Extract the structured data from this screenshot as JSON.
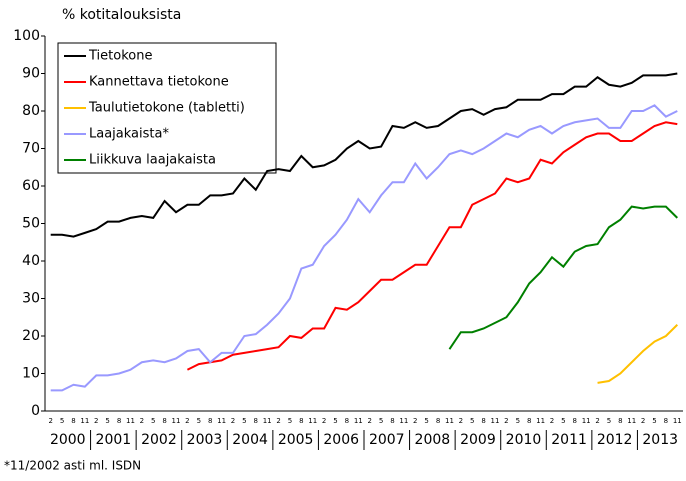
{
  "chart_data": {
    "type": "line",
    "y_label": "% kotitalouksista",
    "footnote": "*11/2002 asti ml. ISDN",
    "categories": [
      "2",
      "5",
      "8",
      "11",
      "2",
      "5",
      "8",
      "11",
      "2",
      "5",
      "8",
      "11",
      "2",
      "5",
      "8",
      "11",
      "2",
      "5",
      "8",
      "11",
      "2",
      "5",
      "8",
      "11",
      "2",
      "5",
      "8",
      "11",
      "2",
      "5",
      "8",
      "11",
      "2",
      "5",
      "8",
      "11",
      "2",
      "5",
      "8",
      "11",
      "2",
      "5",
      "8",
      "11",
      "2",
      "5",
      "8",
      "11",
      "2",
      "5",
      "8",
      "11",
      "2",
      "5",
      "8",
      "11"
    ],
    "year_labels": [
      "2000",
      "2001",
      "2002",
      "2003",
      "2004",
      "2005",
      "2006",
      "2007",
      "2008",
      "2009",
      "2010",
      "2011",
      "2012",
      "2013"
    ],
    "ylim": [
      0,
      100
    ],
    "yticks": [
      0,
      10,
      20,
      30,
      40,
      50,
      60,
      70,
      80,
      90,
      100
    ],
    "grid": false,
    "legend": "upper left",
    "series": [
      {
        "name": "Tietokone",
        "color": "#000000",
        "values": [
          47,
          47,
          46.5,
          47.5,
          48.5,
          50.5,
          50.5,
          51.5,
          52,
          51.5,
          56,
          53,
          55,
          55,
          57.5,
          57.5,
          58,
          62,
          59,
          64,
          64.5,
          64,
          68,
          65,
          65.5,
          67,
          70,
          72,
          70,
          70.5,
          76,
          75.5,
          77,
          75.5,
          76,
          78,
          80,
          80.5,
          79,
          80.5,
          81,
          83,
          83,
          83,
          84.5,
          84.5,
          86.5,
          86.5,
          89,
          87,
          86.5,
          87.5,
          89.5,
          89.5,
          89.5,
          90
        ]
      },
      {
        "name": "Kannettava tietokone",
        "color": "#ff0000",
        "values": [
          null,
          null,
          null,
          null,
          null,
          null,
          null,
          null,
          null,
          null,
          null,
          null,
          11,
          12.5,
          13,
          13.5,
          15,
          15.5,
          16,
          16.5,
          17,
          20,
          19.5,
          22,
          22,
          27.5,
          27,
          29,
          32,
          35,
          35,
          37,
          39,
          39,
          44,
          49,
          49,
          55,
          56.5,
          58,
          62,
          61,
          62,
          67,
          66,
          69,
          71,
          73,
          74,
          74,
          72,
          72,
          74,
          76,
          77,
          76.5
        ]
      },
      {
        "name": "Taulutietokone (tabletti)",
        "color": "#ffc000",
        "values": [
          null,
          null,
          null,
          null,
          null,
          null,
          null,
          null,
          null,
          null,
          null,
          null,
          null,
          null,
          null,
          null,
          null,
          null,
          null,
          null,
          null,
          null,
          null,
          null,
          null,
          null,
          null,
          null,
          null,
          null,
          null,
          null,
          null,
          null,
          null,
          null,
          null,
          null,
          null,
          null,
          null,
          null,
          null,
          null,
          null,
          null,
          null,
          null,
          7.5,
          8,
          10,
          13,
          16,
          18.5,
          20,
          23
        ]
      },
      {
        "name": "Laajakaista*",
        "color": "#9999ff",
        "values": [
          5.5,
          5.5,
          7,
          6.5,
          9.5,
          9.5,
          10,
          11,
          13,
          13.5,
          13,
          14,
          16,
          16.5,
          13,
          15.5,
          15.5,
          20,
          20.5,
          23,
          26,
          30,
          38,
          39,
          44,
          47,
          51,
          56.5,
          53,
          57.5,
          61,
          61,
          66,
          62,
          65,
          68.5,
          69.5,
          68.5,
          70,
          72,
          74,
          73,
          75,
          76,
          74,
          76,
          77,
          77.5,
          78,
          75.5,
          75.5,
          80,
          80,
          81.5,
          78.5,
          80
        ]
      },
      {
        "name": "Liikkuva laajakaista",
        "color": "#008000",
        "values": [
          null,
          null,
          null,
          null,
          null,
          null,
          null,
          null,
          null,
          null,
          null,
          null,
          null,
          null,
          null,
          null,
          null,
          null,
          null,
          null,
          null,
          null,
          null,
          null,
          null,
          null,
          null,
          null,
          null,
          null,
          null,
          null,
          null,
          null,
          null,
          16.5,
          21,
          21,
          22,
          23.5,
          25,
          29,
          34,
          37,
          41,
          38.5,
          42.5,
          44,
          44.5,
          49,
          51,
          54.5,
          54,
          54.5,
          54.5,
          51.5
        ]
      }
    ]
  }
}
